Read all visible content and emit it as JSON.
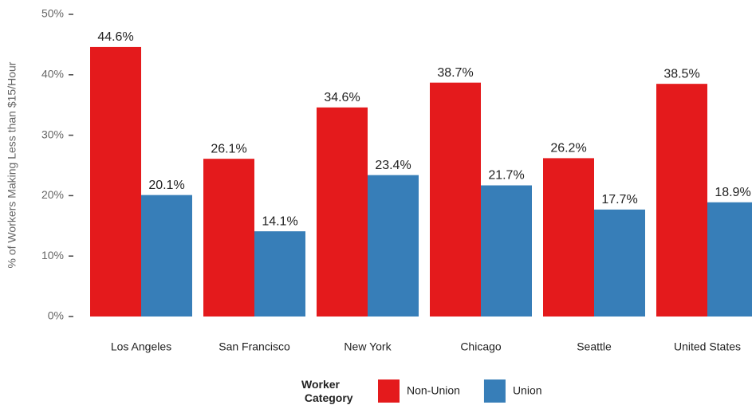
{
  "chart_data": {
    "type": "bar",
    "y_label": "% of Workers Making Less than $15/Hour",
    "categories": [
      "Los Angeles",
      "San Francisco",
      "New York",
      "Chicago",
      "Seattle",
      "United States"
    ],
    "series": [
      {
        "name": "Non-Union",
        "color": "#e41a1c",
        "values": [
          44.6,
          26.1,
          34.6,
          38.7,
          26.2,
          38.5
        ],
        "value_labels": [
          "44.6%",
          "26.1%",
          "34.6%",
          "38.7%",
          "26.2%",
          "38.5%"
        ]
      },
      {
        "name": "Union",
        "color": "#377eb8",
        "values": [
          20.1,
          14.1,
          23.4,
          21.7,
          17.7,
          18.9
        ],
        "value_labels": [
          "20.1%",
          "14.1%",
          "23.4%",
          "21.7%",
          "17.7%",
          "18.9%"
        ]
      }
    ],
    "legend_title": "Worker Category",
    "ylim": [
      0,
      50
    ],
    "yticks": [
      {
        "value": 0,
        "label": "0%"
      },
      {
        "value": 10,
        "label": "10%"
      },
      {
        "value": 20,
        "label": "20%"
      },
      {
        "value": 30,
        "label": "30%"
      },
      {
        "value": 40,
        "label": "40%"
      },
      {
        "value": 50,
        "label": "50%"
      }
    ],
    "grid": false,
    "legend_position": "bottom"
  }
}
